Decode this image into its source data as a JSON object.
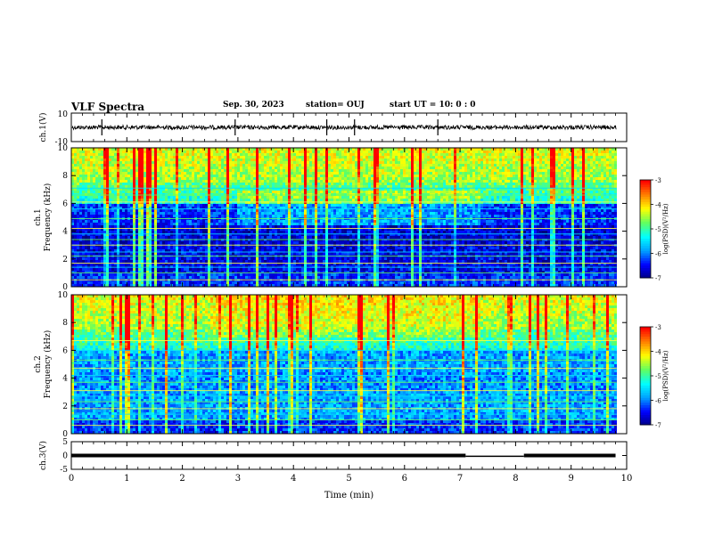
{
  "header": {
    "title": "VLF Spectra",
    "date": "Sep. 30, 2023",
    "station": "station= OUJ",
    "start_ut": "start  UT  =   10: 0  : 0"
  },
  "colors": {
    "waveform": "#000000",
    "axis": "#000000",
    "colormap": [
      "#00007f",
      "#0000ff",
      "#00a0ff",
      "#00ffff",
      "#60ff60",
      "#ffff00",
      "#ff8000",
      "#ff0000"
    ]
  },
  "chart_data": [
    {
      "type": "line",
      "name": "ch1-waveform",
      "ylabel": "ch.1(V)",
      "ylim": [
        -10,
        10
      ],
      "yticks": [
        "10",
        "-10"
      ],
      "xlim": [
        0,
        10
      ],
      "description_values": {
        "baseline": 0,
        "typical_amplitude": 1.5,
        "spikes_x": [
          0.55,
          2.95,
          4.6,
          5.1,
          6.6
        ]
      }
    },
    {
      "type": "heatmap",
      "name": "ch1-spectrogram",
      "ylabel": "ch.1\nFrequency (kHz)",
      "ylim": [
        0,
        10
      ],
      "yticks": [
        "0",
        "2",
        "4",
        "6",
        "8",
        "10"
      ],
      "xlim": [
        0,
        10
      ],
      "colorbar": {
        "label": "log(PSD)(V²/Hz)",
        "range": [
          -7,
          -3
        ],
        "ticks": [
          "-3",
          "-4",
          "-5",
          "-6",
          "-7"
        ]
      },
      "horizontal_lines_khz": [
        0.5,
        1.0,
        1.4,
        1.7,
        2.2,
        2.5,
        3.0,
        3.4,
        3.8,
        4.2,
        4.9,
        5.6,
        6.1,
        6.6,
        7.1
      ]
    },
    {
      "type": "heatmap",
      "name": "ch2-spectrogram",
      "ylabel": "ch.2\nFrequency (kHz)",
      "ylim": [
        0,
        10
      ],
      "yticks": [
        "0",
        "2",
        "4",
        "6",
        "8",
        "10"
      ],
      "xlim": [
        0,
        10
      ],
      "colorbar": {
        "label": "log(PSD)(V²/Hz)",
        "range": [
          -7,
          -3
        ],
        "ticks": [
          "-3",
          "-4",
          "-5",
          "-6",
          "-7"
        ]
      },
      "horizontal_lines_khz": [
        0.6,
        1.0,
        1.4,
        1.8,
        2.3,
        2.7,
        3.1,
        3.7,
        4.2,
        4.7,
        5.3,
        6.0,
        6.7
      ]
    },
    {
      "type": "line",
      "name": "ch3-signal",
      "ylabel": "ch.3(V)",
      "ylim": [
        -5,
        5
      ],
      "yticks": [
        "5",
        "0",
        "-5"
      ],
      "xlim": [
        0,
        10
      ],
      "segments": [
        {
          "x": [
            0,
            7.1
          ],
          "y": 0
        },
        {
          "x": [
            7.1,
            8.15
          ],
          "y": -0.3
        },
        {
          "x": [
            8.15,
            9.8
          ],
          "y": 0
        }
      ]
    }
  ],
  "xaxis": {
    "label": "Time  (min)",
    "ticks": [
      "0",
      "1",
      "2",
      "3",
      "4",
      "5",
      "6",
      "7",
      "8",
      "9",
      "10"
    ],
    "range": [
      0,
      10
    ],
    "data_end": 9.82
  }
}
